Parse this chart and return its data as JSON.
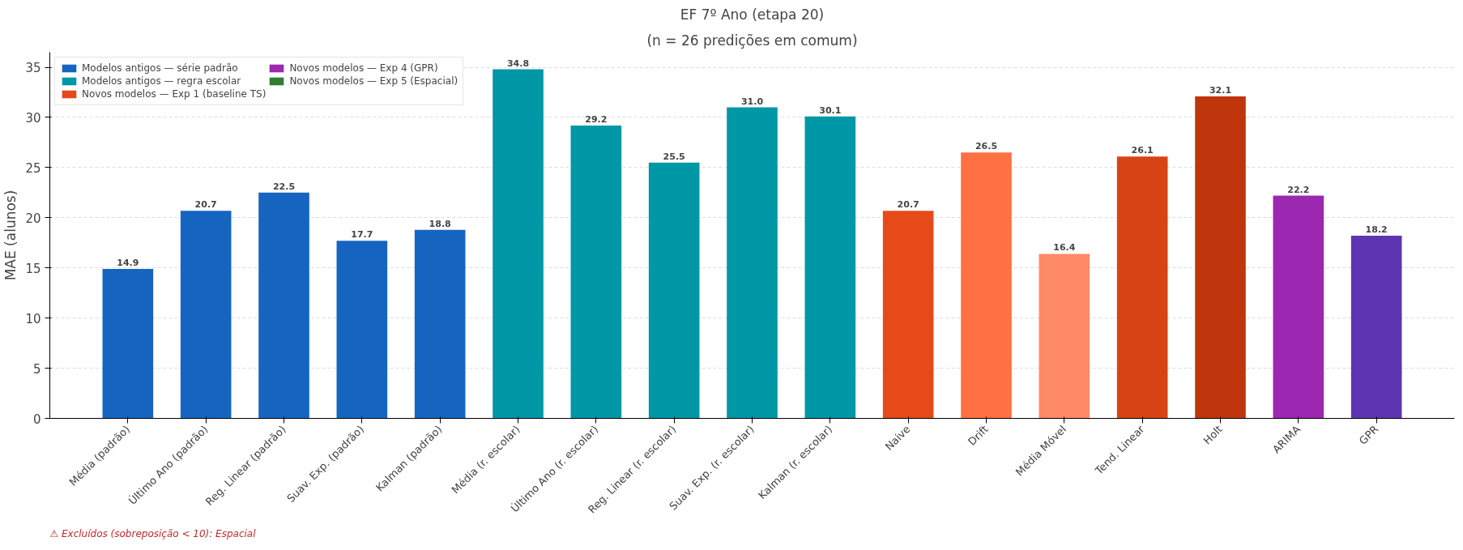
{
  "chart_data": {
    "type": "bar",
    "title": "EF 7º Ano (etapa 20)",
    "subtitle": "(n = 26 predições em comum)",
    "ylabel": "MAE (alunos)",
    "categories": [
      "Média (padrão)",
      "Último Ano (padrão)",
      "Reg. Linear (padrão)",
      "Suav. Exp. (padrão)",
      "Kalman (padrão)",
      "Média (r. escolar)",
      "Último Ano (r. escolar)",
      "Reg. Linear (r. escolar)",
      "Suav. Exp. (r. escolar)",
      "Kalman (r. escolar)",
      "Naive",
      "Drift",
      "Média Móvel",
      "Tend. Linear",
      "Holt",
      "ARIMA",
      "GPR"
    ],
    "series": [
      {
        "name": "Modelos antigos — série padrão",
        "color": "#1565c0",
        "values": [
          14.9,
          20.7,
          22.5,
          17.7,
          18.8,
          null,
          null,
          null,
          null,
          null,
          null,
          null,
          null,
          null,
          null,
          null,
          null
        ],
        "value_labels": [
          "14.9",
          "20.7",
          "22.5",
          "17.7",
          "18.8",
          null,
          null,
          null,
          null,
          null,
          null,
          null,
          null,
          null,
          null,
          null,
          null
        ]
      },
      {
        "name": "Modelos antigos — regra escolar",
        "color": "#0097a7",
        "values": [
          null,
          null,
          null,
          null,
          null,
          34.8,
          29.2,
          25.5,
          31.0,
          30.1,
          null,
          null,
          null,
          null,
          null,
          null,
          null
        ],
        "value_labels": [
          null,
          null,
          null,
          null,
          null,
          "34.8",
          "29.2",
          "25.5",
          "31.0",
          "30.1",
          null,
          null,
          null,
          null,
          null,
          null,
          null
        ]
      },
      {
        "name": "Novos modelos — Exp 1 (baseline TS)",
        "color": "#e64a19",
        "colors": [
          null,
          null,
          null,
          null,
          null,
          null,
          null,
          null,
          null,
          null,
          "#e64a19",
          "#ff7043",
          "#ff8a65",
          "#d84315",
          "#bf360c",
          null,
          null
        ],
        "values": [
          null,
          null,
          null,
          null,
          null,
          null,
          null,
          null,
          null,
          null,
          20.7,
          26.5,
          16.4,
          26.1,
          32.1,
          null,
          null
        ],
        "value_labels": [
          null,
          null,
          null,
          null,
          null,
          null,
          null,
          null,
          null,
          null,
          "20.7",
          "26.5",
          "16.4",
          "26.1",
          "32.1",
          null,
          null
        ]
      },
      {
        "name": "Novos modelos — Exp 4 (GPR)",
        "color": "#9c27b0",
        "colors": [
          null,
          null,
          null,
          null,
          null,
          null,
          null,
          null,
          null,
          null,
          null,
          null,
          null,
          null,
          null,
          "#9c27b0",
          "#5e35b1"
        ],
        "values": [
          null,
          null,
          null,
          null,
          null,
          null,
          null,
          null,
          null,
          null,
          null,
          null,
          null,
          null,
          null,
          22.2,
          18.2
        ],
        "value_labels": [
          null,
          null,
          null,
          null,
          null,
          null,
          null,
          null,
          null,
          null,
          null,
          null,
          null,
          null,
          null,
          "22.2",
          "18.2"
        ]
      },
      {
        "name": "Novos modelos — Exp 5 (Espacial)",
        "color": "#2e7d32",
        "values": [
          null,
          null,
          null,
          null,
          null,
          null,
          null,
          null,
          null,
          null,
          null,
          null,
          null,
          null,
          null,
          null,
          null
        ]
      }
    ],
    "ylim": [
      0,
      36.5
    ],
    "yticks": [
      0,
      5,
      10,
      15,
      20,
      25,
      30,
      35
    ],
    "grid": "y",
    "legend": "top left",
    "data_labels": true,
    "annotations": [
      "⚠ Excluídos (sobreposição < 10): Espacial"
    ]
  }
}
